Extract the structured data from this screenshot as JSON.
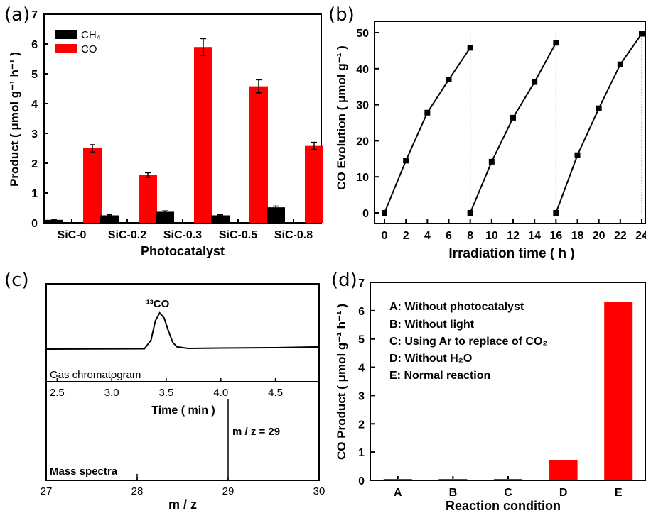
{
  "chart_data": [
    {
      "panel": "(a)",
      "type": "bar",
      "xlabel": "Photocatalyst",
      "ylabel": "Product ( μmol g⁻¹ h⁻¹ )",
      "ylim": [
        0,
        7
      ],
      "yticks": [
        "0",
        "1",
        "2",
        "3",
        "4",
        "5",
        "6",
        "7"
      ],
      "categories": [
        "SiC-0",
        "SiC-0.2",
        "SiC-0.3",
        "SiC-0.5",
        "SiC-0.8"
      ],
      "legend_position": "top-left",
      "series": [
        {
          "name": "CH₄",
          "color": "#000000",
          "values": [
            0.1,
            0.25,
            0.37,
            0.25,
            0.52
          ],
          "errors": [
            0.02,
            0.02,
            0.03,
            0.02,
            0.04
          ]
        },
        {
          "name": "CO",
          "color": "#ff0000",
          "values": [
            2.5,
            1.6,
            5.9,
            4.58,
            2.58
          ],
          "errors": [
            0.12,
            0.08,
            0.28,
            0.22,
            0.12
          ]
        }
      ]
    },
    {
      "panel": "(b)",
      "type": "line",
      "xlabel": "Irradiation time ( h )",
      "ylabel": "CO Evolution ( μmol g⁻¹ )",
      "xlim": [
        0,
        24
      ],
      "ylim": [
        0,
        50
      ],
      "xticks": [
        "0",
        "2",
        "4",
        "6",
        "8",
        "10",
        "12",
        "14",
        "16",
        "18",
        "20",
        "22",
        "24"
      ],
      "yticks": [
        "0",
        "10",
        "20",
        "30",
        "40",
        "50"
      ],
      "cycle_boundaries": [
        8,
        16,
        24
      ],
      "series": [
        {
          "x": [
            0,
            2,
            4,
            6,
            8
          ],
          "values": [
            0,
            14.5,
            27.8,
            37,
            45.8
          ]
        },
        {
          "x": [
            8,
            10,
            12,
            14,
            16
          ],
          "values": [
            0,
            14.2,
            26.4,
            36.3,
            47.2
          ]
        },
        {
          "x": [
            16,
            18,
            20,
            22,
            24
          ],
          "values": [
            0,
            16,
            29,
            41.2,
            49.7
          ]
        }
      ]
    },
    {
      "panel": "(c)",
      "type": "line",
      "top": {
        "label": "Gas chromatogram",
        "peak_label": "¹³CO",
        "xlabel": "Time ( min )",
        "xlim": [
          2.4,
          4.9
        ],
        "xticks": [
          "2.5",
          "3.0",
          "3.5",
          "4.0",
          "4.5"
        ],
        "x": [
          2.4,
          3.3,
          3.36,
          3.4,
          3.44,
          3.48,
          3.52,
          3.56,
          3.6,
          3.7,
          4.0,
          4.5,
          4.9
        ],
        "values": [
          0,
          0.01,
          0.25,
          0.78,
          1.0,
          0.86,
          0.5,
          0.18,
          0.06,
          0.02,
          0.03,
          0.04,
          0.06
        ]
      },
      "bottom": {
        "label": "Mass spectra",
        "peak_label": "m / z = 29",
        "xlabel": "m / z",
        "xlim": [
          27,
          30
        ],
        "xticks": [
          "27",
          "28",
          "29",
          "30"
        ],
        "x": [
          28,
          29
        ],
        "values": [
          0.08,
          1.0
        ]
      }
    },
    {
      "panel": "(d)",
      "type": "bar",
      "xlabel": "Reaction condition",
      "ylabel": "CO Product ( μmol g⁻¹ h⁻¹ )",
      "ylim": [
        0,
        7
      ],
      "yticks": [
        "0",
        "1",
        "2",
        "3",
        "4",
        "5",
        "6",
        "7"
      ],
      "categories": [
        "A",
        "B",
        "C",
        "D",
        "E"
      ],
      "values": [
        0.05,
        0.05,
        0.05,
        0.72,
        6.3
      ],
      "color": "#ff0000",
      "legend": [
        "A: Without photocatalyst",
        "B: Without light",
        "C: Using Ar to replace of CO₂",
        "D: Without H₂O",
        "E: Normal reaction"
      ]
    }
  ],
  "panel_labels": [
    "(a)",
    "(b)",
    "(c)",
    "(d)"
  ]
}
